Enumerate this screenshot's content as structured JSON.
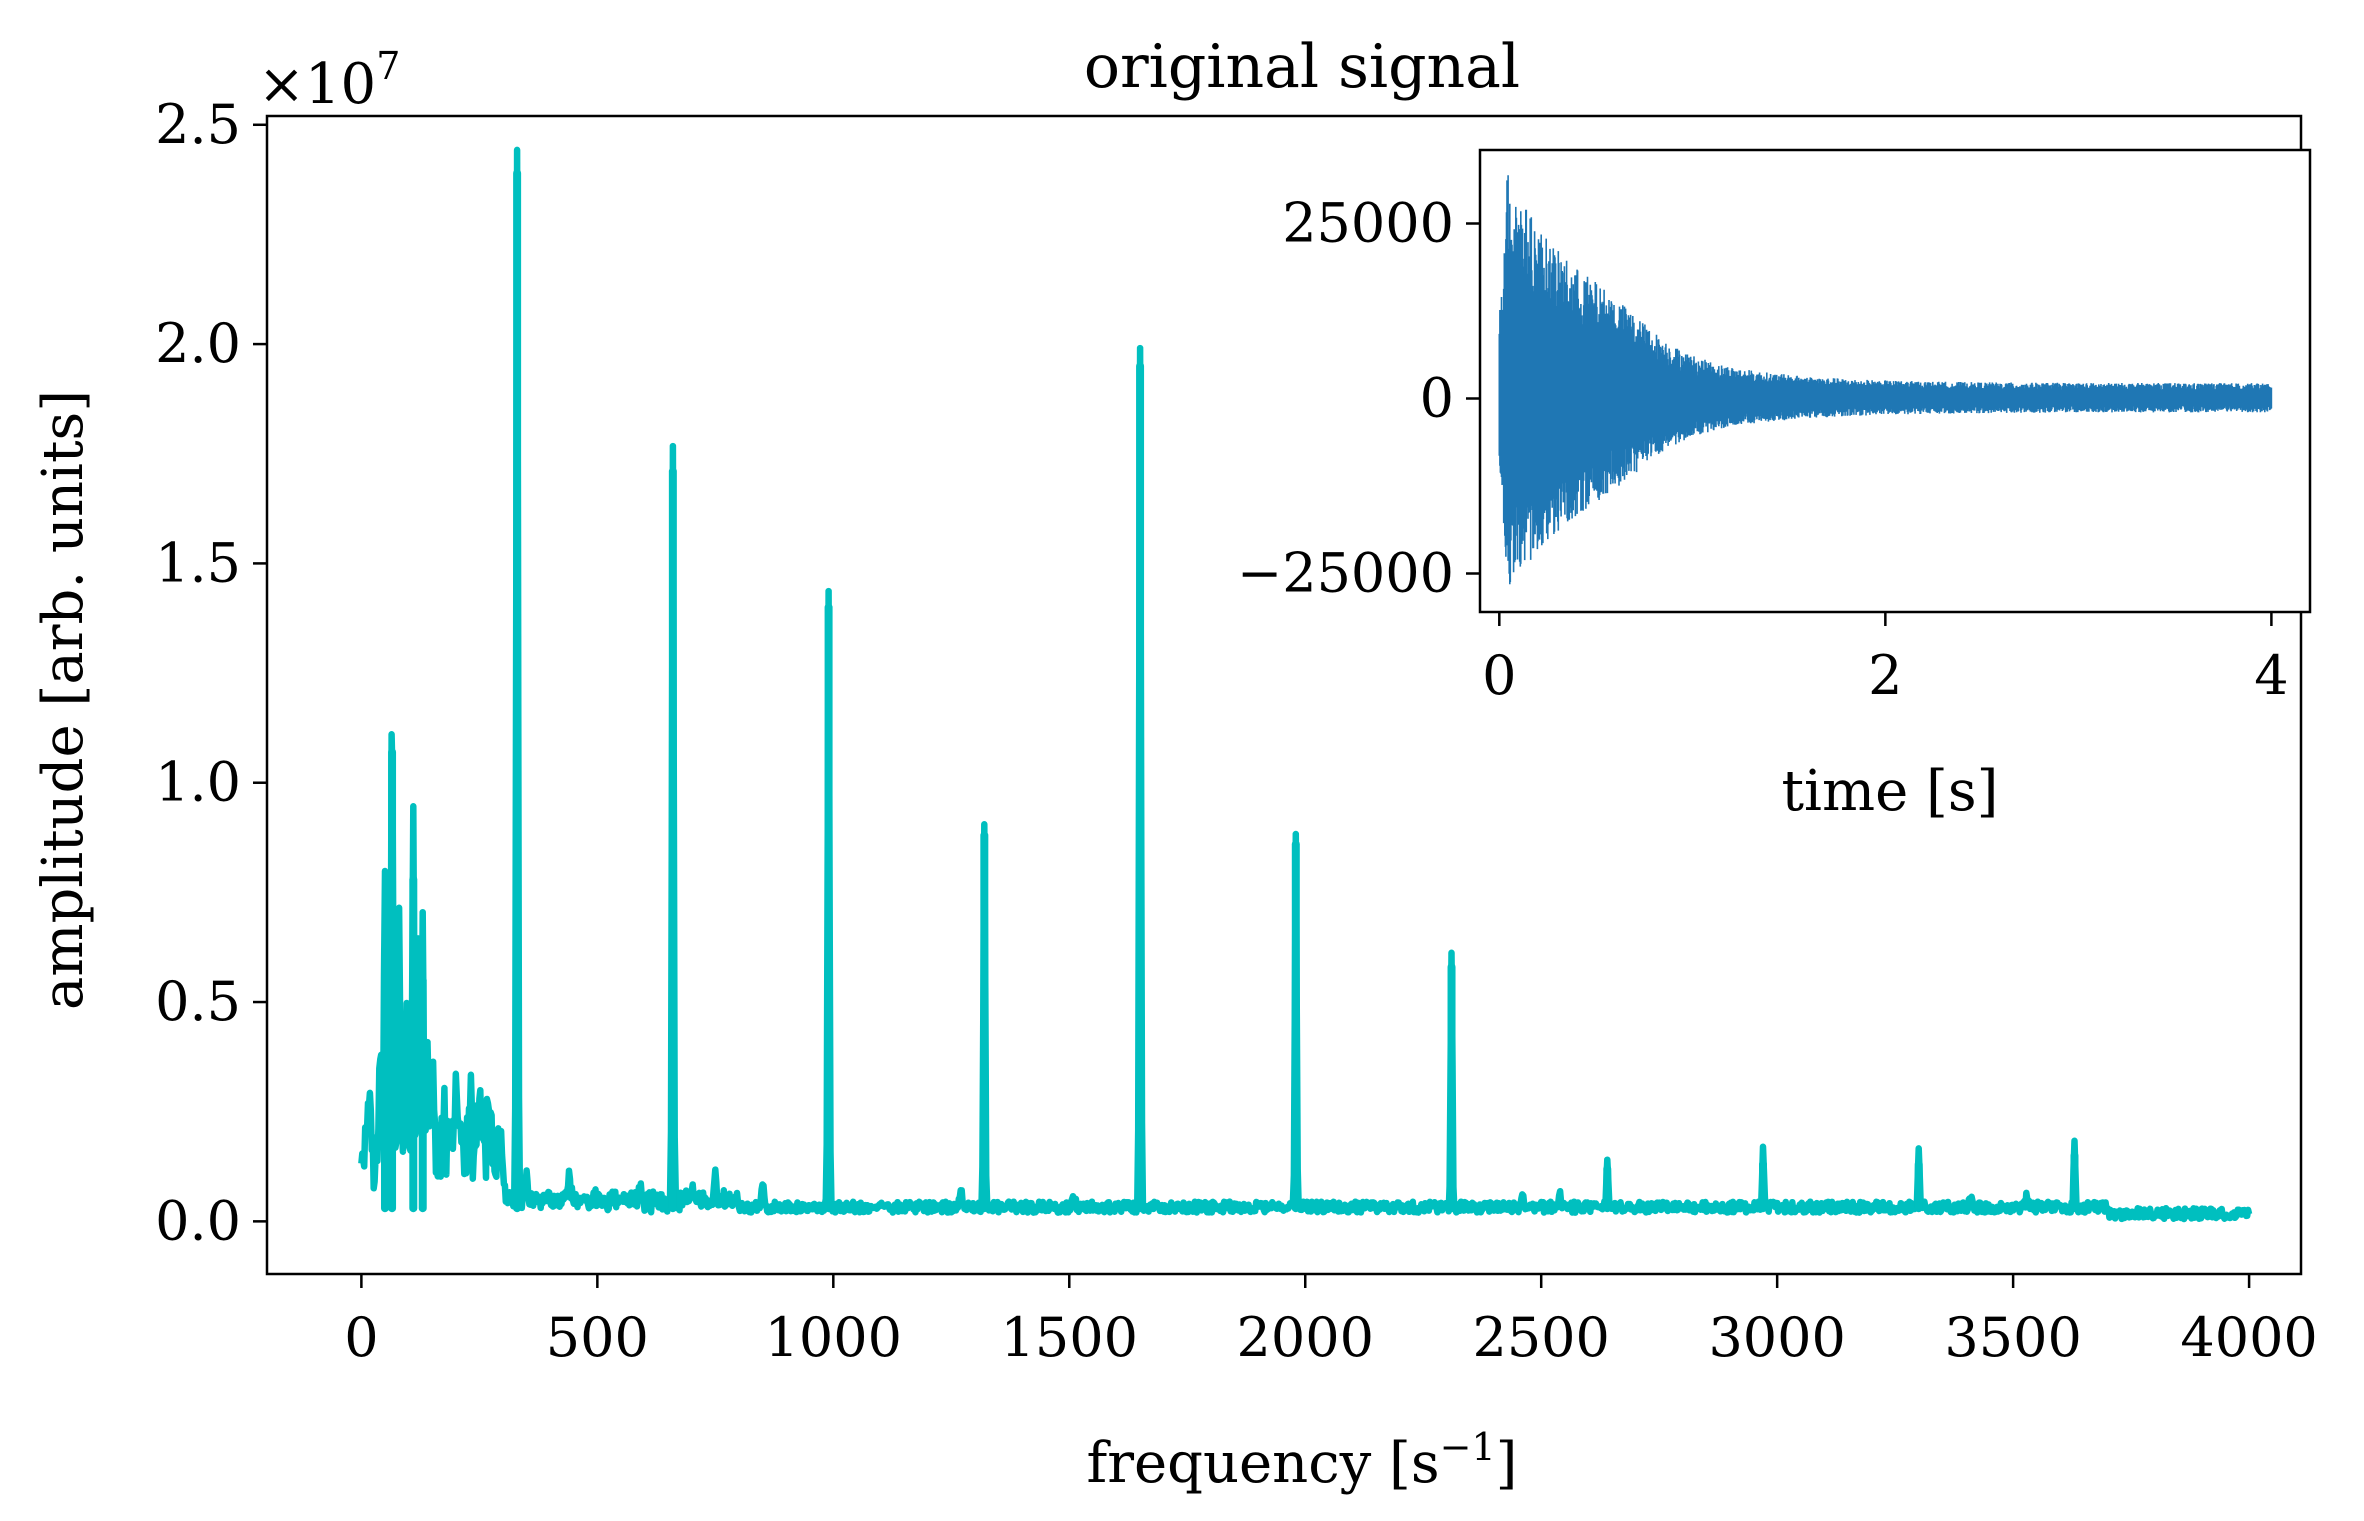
{
  "colors": {
    "main_series": "#00bfbf",
    "inset_series": "#1f77b4",
    "axes": "#000000",
    "background": "#ffffff"
  },
  "chart_data": [
    {
      "type": "line",
      "title": "original signal",
      "xlabel": "frequency [s",
      "xlabel_superscript": "−1",
      "xlabel_close": "]",
      "ylabel": "amplitude [arb. units]",
      "y_offset_label": "×10",
      "y_offset_exponent": "7",
      "xlim": [
        -200,
        4110
      ],
      "ylim": [
        -0.12,
        2.52
      ],
      "x_ticks": [
        0,
        500,
        1000,
        1500,
        2000,
        2500,
        3000,
        3500,
        4000
      ],
      "x_tick_labels": [
        "0",
        "500",
        "1000",
        "1500",
        "2000",
        "2500",
        "3000",
        "3500",
        "4000"
      ],
      "y_ticks": [
        0,
        0.5,
        1.0,
        1.5,
        2.0,
        2.5
      ],
      "y_tick_labels": [
        "0.0",
        "0.5",
        "1.0",
        "1.5",
        "2.0",
        "2.5"
      ],
      "grid": false,
      "series": [
        {
          "peaks": [
            {
              "x": 50,
              "y": 0.62
            },
            {
              "x": 65,
              "y": 1.07
            },
            {
              "x": 110,
              "y": 0.78
            },
            {
              "x": 130,
              "y": 0.55
            },
            {
              "x": 330,
              "y": 2.39
            },
            {
              "x": 660,
              "y": 1.71
            },
            {
              "x": 990,
              "y": 1.4
            },
            {
              "x": 1320,
              "y": 0.88
            },
            {
              "x": 1650,
              "y": 1.95
            },
            {
              "x": 1980,
              "y": 0.86
            },
            {
              "x": 2310,
              "y": 0.58
            },
            {
              "x": 2640,
              "y": 0.12
            },
            {
              "x": 2970,
              "y": 0.13
            },
            {
              "x": 3300,
              "y": 0.13
            },
            {
              "x": 3630,
              "y": 0.15
            }
          ],
          "x_range": [
            0,
            4000
          ]
        }
      ]
    },
    {
      "type": "line",
      "title": "",
      "xlabel": "time [s]",
      "ylabel": "",
      "xlim": [
        -0.1,
        4.2
      ],
      "ylim": [
        -30500,
        35500
      ],
      "x_ticks": [
        0,
        2,
        4
      ],
      "x_tick_labels": [
        "0",
        "2",
        "4"
      ],
      "y_ticks": [
        -25000,
        0,
        25000
      ],
      "y_tick_labels": [
        "−25000",
        "0",
        "25000"
      ],
      "grid": false,
      "series": [
        {
          "x_range": [
            0,
            4
          ],
          "envelope_peak_positive": 33000,
          "envelope_peak_negative": -27000,
          "envelope_tail": 2200
        }
      ]
    }
  ]
}
